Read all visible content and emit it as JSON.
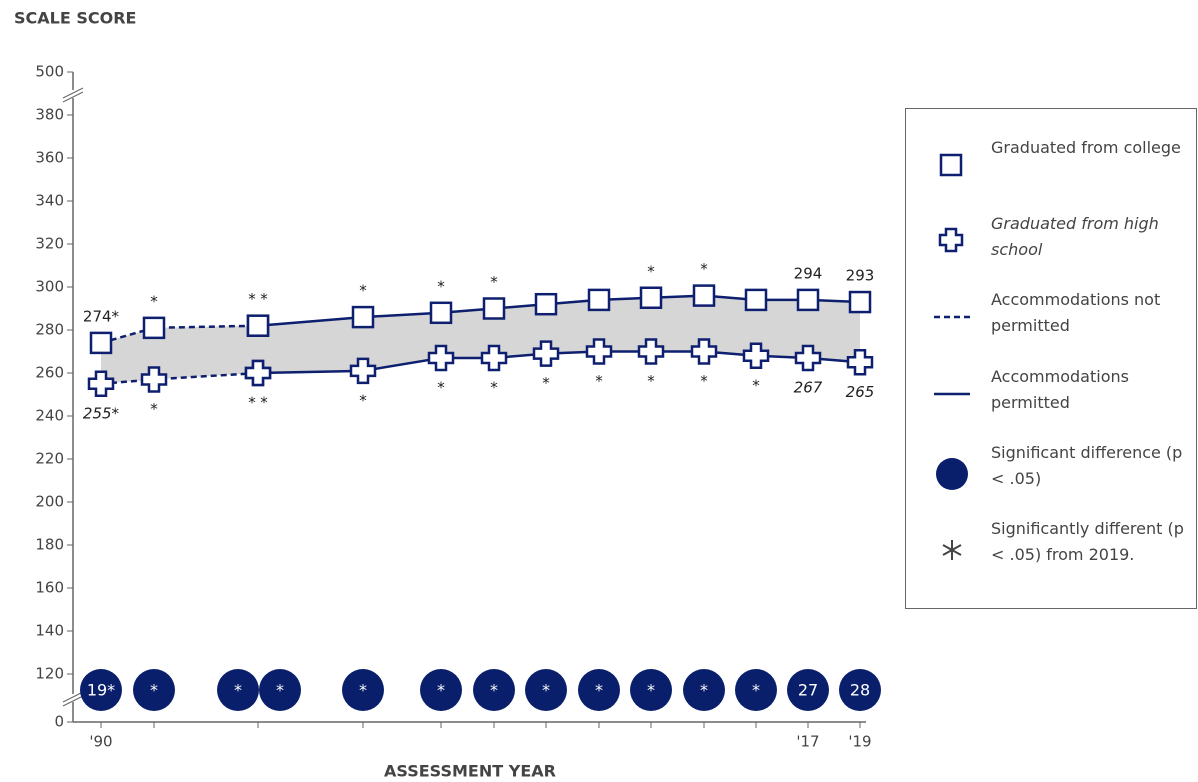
{
  "chart_data": {
    "type": "line",
    "y_axis_title": "SCALE SCORE",
    "x_axis_title": "ASSESSMENT YEAR",
    "categories": [
      "'90",
      null,
      null,
      null,
      null,
      null,
      null,
      null,
      null,
      null,
      null,
      null,
      "'17",
      "'19"
    ],
    "accommodations_permitted": [
      false,
      false,
      false,
      true,
      true,
      true,
      true,
      true,
      true,
      true,
      true,
      true,
      true,
      true
    ],
    "series": [
      {
        "name": "Graduated from college",
        "marker": "square",
        "color": "#0d1f6e",
        "values": [
          274,
          281,
          282,
          282,
          286,
          288,
          290,
          292,
          294,
          295,
          296,
          294,
          294,
          293
        ],
        "value_labels": [
          "274*",
          "*",
          "*",
          "*",
          "*",
          "*",
          "*",
          null,
          null,
          "*",
          "*",
          null,
          "294",
          "293"
        ]
      },
      {
        "name": "Graduated from high school",
        "marker": "plus",
        "color": "#0d1f6e",
        "values": [
          255,
          257,
          260,
          260,
          261,
          267,
          267,
          269,
          270,
          270,
          270,
          268,
          267,
          265
        ],
        "value_labels": [
          "255*",
          "*",
          "*",
          "*",
          "*",
          "*",
          "*",
          "*",
          "*",
          "*",
          "*",
          "*",
          "267",
          "265"
        ]
      }
    ],
    "gap_labels": [
      "19*",
      "*",
      "*",
      "*",
      "*",
      "*",
      "*",
      "*",
      "*",
      "*",
      "*",
      "*",
      "27",
      "28"
    ],
    "gap_color": "#0a1f6b",
    "band_color": "#d6d6d6",
    "ylim": [
      0,
      500
    ],
    "yticks": [
      0,
      120,
      140,
      160,
      180,
      200,
      220,
      240,
      260,
      280,
      300,
      320,
      340,
      360,
      380,
      500
    ],
    "axis_break": true,
    "legend_position": "right",
    "legend_notes": [
      "Accommodations not permitted",
      "Accommodations permitted",
      "Significant difference (p < .05)",
      "Significantly different (p < .05) from 2019."
    ]
  }
}
